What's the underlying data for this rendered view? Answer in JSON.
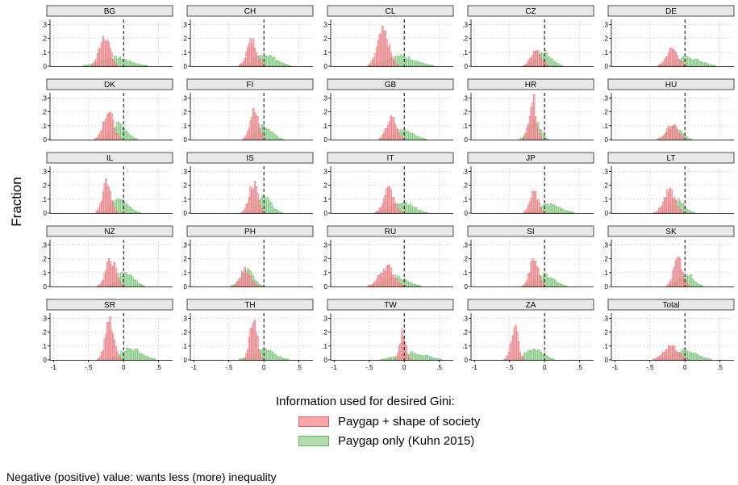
{
  "chart_data": {
    "type": "histogram-facets",
    "ylabel": "Fraction",
    "legend_title": "Information used for desired Gini:",
    "note": "Negative (positive) value: wants less (more) inequality",
    "x_ticks": [
      "-1",
      "-.5",
      "0",
      ".5"
    ],
    "x_tick_values": [
      -1,
      -0.5,
      0,
      0.5
    ],
    "y_ticks": [
      ".3",
      ".2",
      ".1",
      "0"
    ],
    "y_tick_values": [
      0.3,
      0.2,
      0.1,
      0
    ],
    "xlim": [
      -1.05,
      0.7
    ],
    "ylim": [
      0,
      0.32
    ],
    "reference_line_x": 0,
    "grid": "dotted",
    "colors": {
      "pink_fill": "#f7a7ab",
      "pink_edge": "#e2606a",
      "green_fill": "#b3dcb1",
      "green_edge": "#5fb85c",
      "panel_header": "#e8e8e8"
    },
    "series": [
      {
        "name": "Paygap + shape of society",
        "color": "#f7a7ab"
      },
      {
        "name": "Paygap only (Kuhn 2015)",
        "color": "#b3dcb1"
      }
    ],
    "panels": [
      {
        "label": "BG",
        "pink": {
          "peak": -0.27,
          "height": 0.23,
          "width": 0.07
        },
        "green": {
          "peak": -0.12,
          "height": 0.06,
          "width": 0.2
        }
      },
      {
        "label": "CH",
        "pink": {
          "peak": -0.17,
          "height": 0.18,
          "width": 0.07
        },
        "green": {
          "peak": 0.02,
          "height": 0.08,
          "width": 0.15
        }
      },
      {
        "label": "CL",
        "pink": {
          "peak": -0.3,
          "height": 0.24,
          "width": 0.08
        },
        "green": {
          "peak": -0.05,
          "height": 0.07,
          "width": 0.2
        }
      },
      {
        "label": "CZ",
        "pink": {
          "peak": -0.12,
          "height": 0.12,
          "width": 0.07
        },
        "green": {
          "peak": -0.02,
          "height": 0.1,
          "width": 0.11
        }
      },
      {
        "label": "DE",
        "pink": {
          "peak": -0.18,
          "height": 0.12,
          "width": 0.08
        },
        "green": {
          "peak": 0.03,
          "height": 0.06,
          "width": 0.18
        }
      },
      {
        "label": "DK",
        "pink": {
          "peak": -0.22,
          "height": 0.2,
          "width": 0.07
        },
        "green": {
          "peak": -0.06,
          "height": 0.11,
          "width": 0.1
        }
      },
      {
        "label": "FI",
        "pink": {
          "peak": -0.14,
          "height": 0.2,
          "width": 0.06
        },
        "green": {
          "peak": 0.0,
          "height": 0.1,
          "width": 0.11
        }
      },
      {
        "label": "GB",
        "pink": {
          "peak": -0.18,
          "height": 0.15,
          "width": 0.07
        },
        "green": {
          "peak": 0.0,
          "height": 0.07,
          "width": 0.13
        }
      },
      {
        "label": "HR",
        "pink": {
          "peak": -0.17,
          "height": 0.29,
          "width": 0.05
        },
        "green": {
          "peak": -0.15,
          "height": 0.14,
          "width": 0.08
        }
      },
      {
        "label": "HU",
        "pink": {
          "peak": -0.18,
          "height": 0.1,
          "width": 0.08
        },
        "green": {
          "peak": -0.15,
          "height": 0.09,
          "width": 0.1
        }
      },
      {
        "label": "IL",
        "pink": {
          "peak": -0.24,
          "height": 0.21,
          "width": 0.06
        },
        "green": {
          "peak": -0.05,
          "height": 0.11,
          "width": 0.11
        }
      },
      {
        "label": "IS",
        "pink": {
          "peak": -0.15,
          "height": 0.21,
          "width": 0.06
        },
        "green": {
          "peak": 0.0,
          "height": 0.11,
          "width": 0.1
        }
      },
      {
        "label": "IT",
        "pink": {
          "peak": -0.22,
          "height": 0.17,
          "width": 0.07
        },
        "green": {
          "peak": -0.03,
          "height": 0.08,
          "width": 0.15
        }
      },
      {
        "label": "JP",
        "pink": {
          "peak": -0.15,
          "height": 0.14,
          "width": 0.06
        },
        "green": {
          "peak": 0.07,
          "height": 0.06,
          "width": 0.15
        }
      },
      {
        "label": "LT",
        "pink": {
          "peak": -0.22,
          "height": 0.15,
          "width": 0.08
        },
        "green": {
          "peak": -0.12,
          "height": 0.1,
          "width": 0.1
        }
      },
      {
        "label": "NZ",
        "pink": {
          "peak": -0.18,
          "height": 0.19,
          "width": 0.07
        },
        "green": {
          "peak": 0.03,
          "height": 0.1,
          "width": 0.11
        }
      },
      {
        "label": "PH",
        "pink": {
          "peak": -0.26,
          "height": 0.12,
          "width": 0.07
        },
        "green": {
          "peak": -0.24,
          "height": 0.11,
          "width": 0.09
        }
      },
      {
        "label": "RU",
        "pink": {
          "peak": -0.25,
          "height": 0.14,
          "width": 0.1
        },
        "green": {
          "peak": -0.12,
          "height": 0.07,
          "width": 0.15
        }
      },
      {
        "label": "SI",
        "pink": {
          "peak": -0.15,
          "height": 0.19,
          "width": 0.06
        },
        "green": {
          "peak": 0.0,
          "height": 0.08,
          "width": 0.13
        }
      },
      {
        "label": "SK",
        "pink": {
          "peak": -0.1,
          "height": 0.19,
          "width": 0.06
        },
        "green": {
          "peak": 0.02,
          "height": 0.09,
          "width": 0.1
        }
      },
      {
        "label": "SR",
        "pink": {
          "peak": -0.2,
          "height": 0.27,
          "width": 0.06
        },
        "green": {
          "peak": 0.1,
          "height": 0.08,
          "width": 0.15
        }
      },
      {
        "label": "TH",
        "pink": {
          "peak": -0.15,
          "height": 0.3,
          "width": 0.05
        },
        "green": {
          "peak": 0.0,
          "height": 0.07,
          "width": 0.15
        }
      },
      {
        "label": "TW",
        "pink": {
          "peak": -0.02,
          "height": 0.2,
          "width": 0.04
        },
        "green": {
          "peak": 0.1,
          "height": 0.05,
          "width": 0.2
        }
      },
      {
        "label": "ZA",
        "pink": {
          "peak": -0.43,
          "height": 0.24,
          "width": 0.05
        },
        "green": {
          "peak": -0.15,
          "height": 0.08,
          "width": 0.12
        }
      },
      {
        "label": "Total",
        "pink": {
          "peak": -0.2,
          "height": 0.1,
          "width": 0.1
        },
        "green": {
          "peak": 0.0,
          "height": 0.07,
          "width": 0.16
        }
      }
    ]
  }
}
